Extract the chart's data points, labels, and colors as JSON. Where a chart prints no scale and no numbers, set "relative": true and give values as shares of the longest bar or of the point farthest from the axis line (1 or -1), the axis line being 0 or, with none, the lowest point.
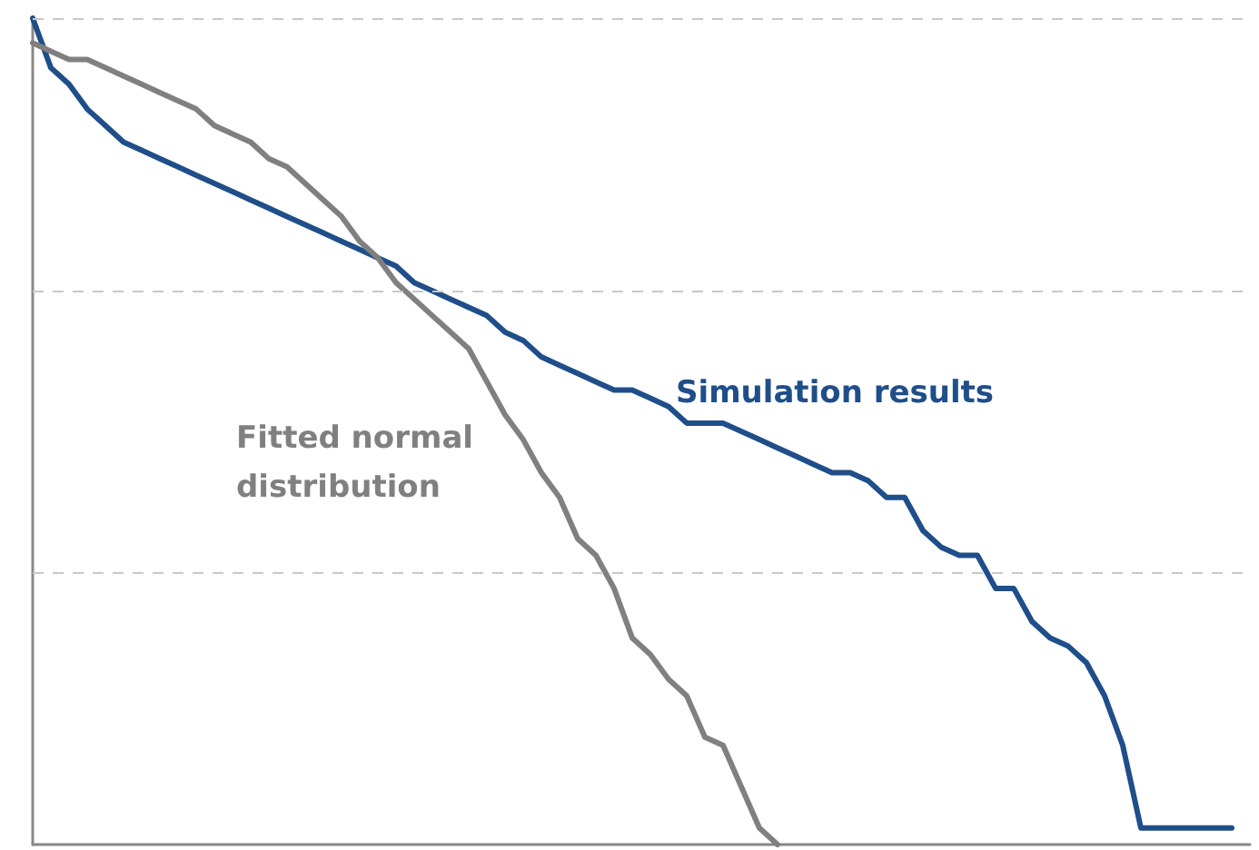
{
  "chart_data": {
    "type": "line",
    "relative": true,
    "legend": false,
    "ref_lines": [
      {
        "axis": "y",
        "value": 0.33,
        "color": "#c8c8c8",
        "line_style": "dashed"
      },
      {
        "axis": "y",
        "value": 0.667,
        "color": "#c8c8c8",
        "line_style": "dashed"
      },
      {
        "axis": "y",
        "value": 1,
        "color": "#c8c8c8",
        "line_style": "dashed"
      }
    ],
    "marker": "none",
    "line_style": "solid",
    "categories": [
      null,
      null,
      null,
      null,
      null,
      null,
      null,
      null,
      null,
      null,
      null,
      null,
      null,
      null,
      null,
      null,
      null,
      null,
      null,
      null,
      null,
      null,
      null,
      null,
      null,
      null,
      null,
      null,
      null,
      null,
      null,
      null,
      null,
      null,
      null,
      null,
      null,
      null,
      null,
      null,
      null,
      null,
      null,
      null,
      null,
      null,
      null,
      null,
      null,
      null,
      null,
      null,
      null,
      null,
      null,
      null,
      null,
      null,
      null,
      null,
      null,
      null,
      null,
      null,
      null,
      null,
      null,
      null
    ],
    "series": [
      {
        "name": "Simulation results",
        "color": "#1f4e89",
        "values": [
          1.0,
          0.94,
          0.92,
          0.89,
          0.87,
          0.85,
          0.84,
          0.83,
          0.82,
          0.81,
          0.8,
          0.79,
          0.78,
          0.77,
          0.76,
          0.75,
          0.74,
          0.73,
          0.72,
          0.71,
          0.7,
          0.68,
          0.67,
          0.66,
          0.65,
          0.64,
          0.62,
          0.61,
          0.59,
          0.58,
          0.57,
          0.56,
          0.55,
          0.55,
          0.54,
          0.53,
          0.51,
          0.51,
          0.51,
          0.5,
          0.49,
          0.48,
          0.47,
          0.46,
          0.45,
          0.45,
          0.44,
          0.42,
          0.42,
          0.38,
          0.36,
          0.35,
          0.35,
          0.31,
          0.31,
          0.27,
          0.25,
          0.24,
          0.22,
          0.18,
          0.12,
          0.02,
          0.02,
          0.02,
          0.02,
          0.02,
          0.02,
          null
        ]
      },
      {
        "name": "Fitted normal distribution",
        "color": "#808080",
        "values": [
          0.97,
          0.96,
          0.95,
          0.95,
          0.94,
          0.93,
          0.92,
          0.91,
          0.9,
          0.89,
          0.87,
          0.86,
          0.85,
          0.83,
          0.82,
          0.8,
          0.78,
          0.76,
          0.73,
          0.71,
          0.68,
          0.66,
          0.64,
          0.62,
          0.6,
          0.56,
          0.52,
          0.49,
          0.45,
          0.42,
          0.37,
          0.35,
          0.31,
          0.25,
          0.23,
          0.2,
          0.18,
          0.13,
          0.12,
          0.07,
          0.02,
          0.0,
          null,
          null,
          null,
          null,
          null,
          null,
          null,
          null,
          null,
          null,
          null,
          null,
          null,
          null,
          null,
          null,
          null,
          null,
          null,
          null,
          null,
          null,
          null,
          null,
          null,
          null
        ]
      }
    ]
  }
}
